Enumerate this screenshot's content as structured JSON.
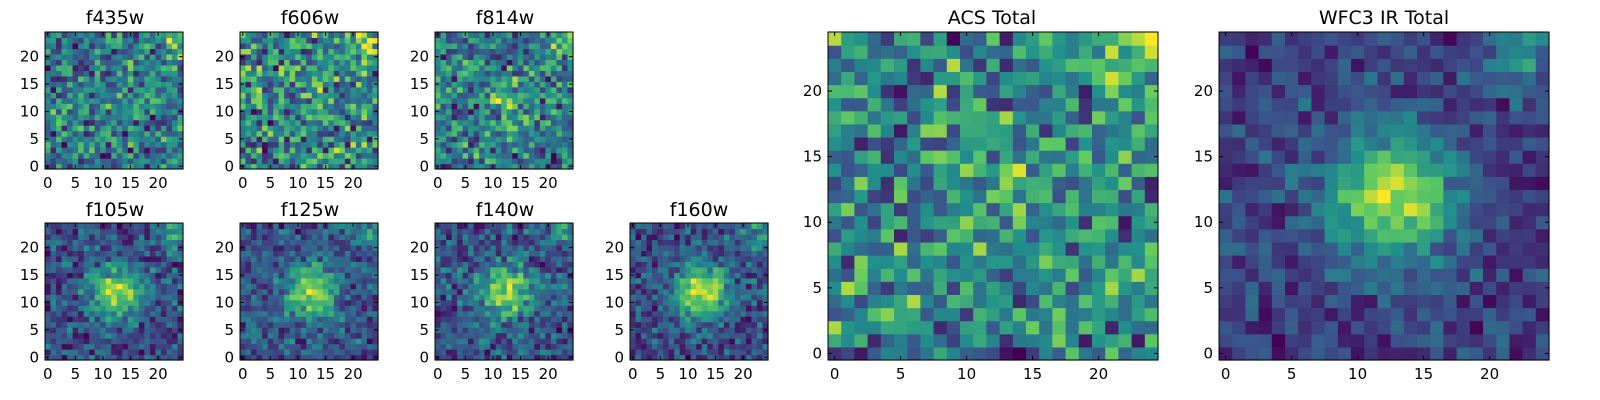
{
  "chart_data": [
    {
      "type": "heatmap",
      "title": "f435w",
      "seed": 11,
      "peak": 0.0,
      "noise": 0.55,
      "ylim": [
        -0.5,
        24.5
      ],
      "xticks": [
        0,
        5,
        10,
        15,
        20
      ],
      "yticks": [
        0,
        5,
        10,
        15,
        20
      ]
    },
    {
      "type": "heatmap",
      "title": "f606w",
      "seed": 23,
      "peak": 0.0,
      "noise": 0.55,
      "ylim": [
        -0.5,
        24.5
      ],
      "xticks": [
        0,
        5,
        10,
        15,
        20
      ],
      "yticks": [
        0,
        5,
        10,
        15,
        20
      ]
    },
    {
      "type": "heatmap",
      "title": "f814w",
      "seed": 37,
      "peak": 0.3,
      "noise": 0.55,
      "ylim": [
        -0.5,
        24.5
      ],
      "xticks": [
        0,
        5,
        10,
        15,
        20
      ],
      "yticks": [
        0,
        5,
        10,
        15,
        20
      ]
    },
    {
      "type": "heatmap",
      "title": "f105w",
      "seed": 41,
      "peak": 0.8,
      "noise": 0.4,
      "ylim": [
        -0.5,
        24.5
      ],
      "xticks": [
        0,
        5,
        10,
        15,
        20
      ],
      "yticks": [
        0,
        5,
        10,
        15,
        20
      ]
    },
    {
      "type": "heatmap",
      "title": "f125w",
      "seed": 53,
      "peak": 0.8,
      "noise": 0.4,
      "ylim": [
        -0.5,
        24.5
      ],
      "xticks": [
        0,
        5,
        10,
        15,
        20
      ],
      "yticks": [
        0,
        5,
        10,
        15,
        20
      ]
    },
    {
      "type": "heatmap",
      "title": "f140w",
      "seed": 67,
      "peak": 0.8,
      "noise": 0.4,
      "ylim": [
        -0.5,
        24.5
      ],
      "xticks": [
        0,
        5,
        10,
        15,
        20
      ],
      "yticks": [
        0,
        5,
        10,
        15,
        20
      ]
    },
    {
      "type": "heatmap",
      "title": "f160w",
      "seed": 79,
      "peak": 0.9,
      "noise": 0.35,
      "ylim": [
        -0.5,
        24.5
      ],
      "xticks": [
        0,
        5,
        10,
        15,
        20
      ],
      "yticks": [
        0,
        5,
        10,
        15,
        20
      ]
    },
    {
      "type": "heatmap",
      "title": "ACS Total",
      "seed": 97,
      "peak": 0.15,
      "noise": 0.5,
      "ylim": [
        -0.5,
        24.5
      ],
      "xticks": [
        0,
        5,
        10,
        15,
        20
      ],
      "yticks": [
        0,
        5,
        10,
        15,
        20
      ]
    },
    {
      "type": "heatmap",
      "title": "WFC3 IR Total",
      "seed": 131,
      "peak": 1.0,
      "noise": 0.3,
      "ylim": [
        -0.5,
        24.5
      ],
      "xticks": [
        0,
        5,
        10,
        15,
        20
      ],
      "yticks": [
        0,
        5,
        10,
        15,
        20
      ]
    }
  ],
  "colormap": [
    "#440154",
    "#3b528b",
    "#21918c",
    "#5ec962",
    "#fde725"
  ]
}
